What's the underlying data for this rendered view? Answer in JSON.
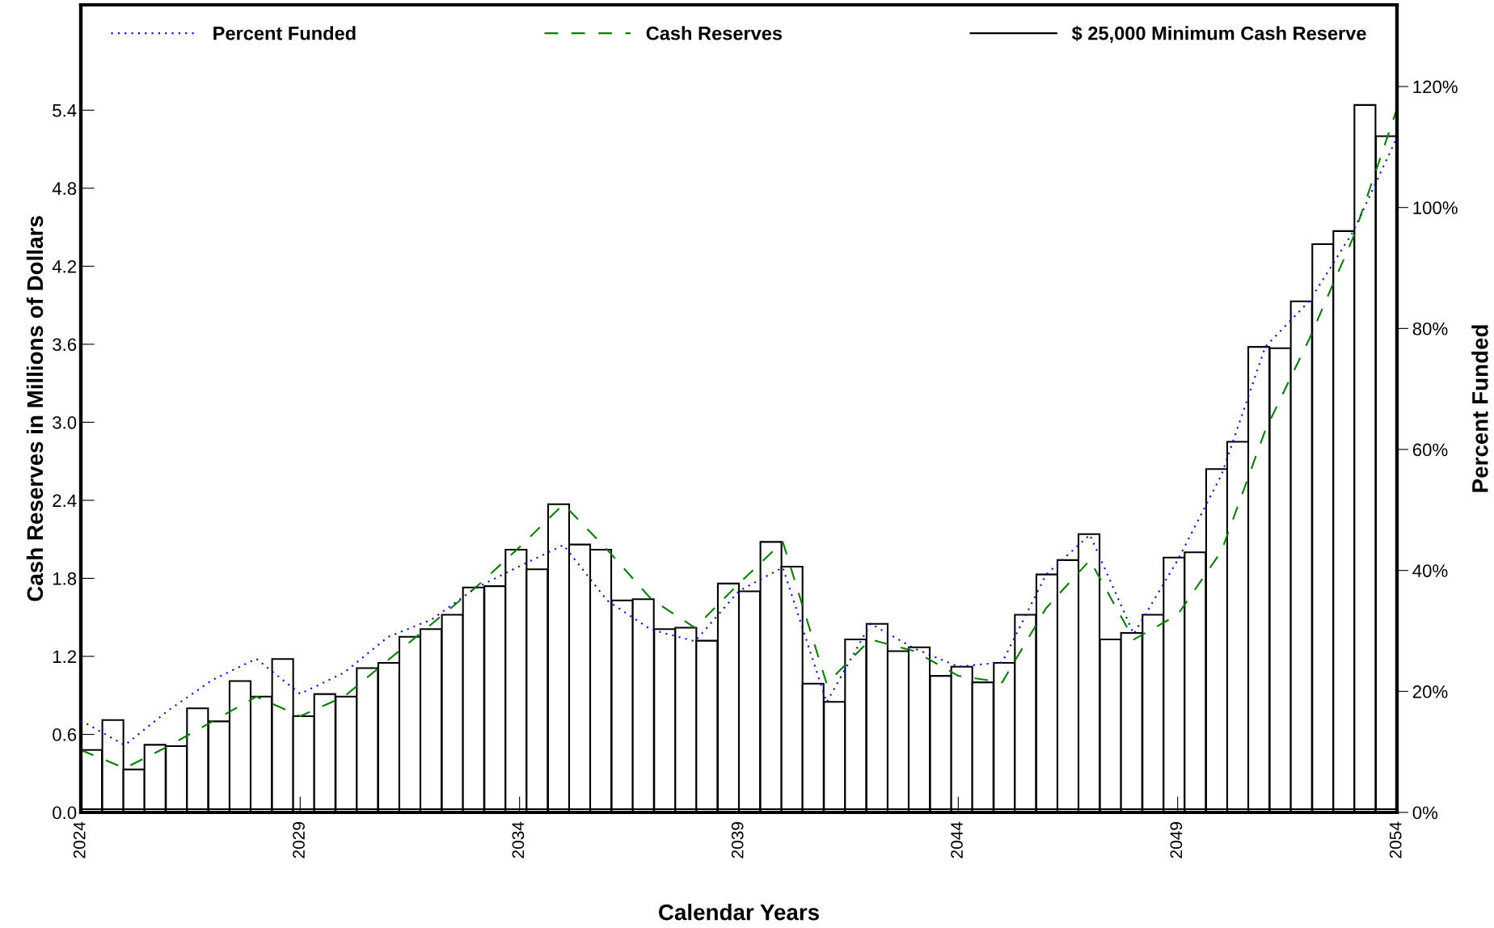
{
  "chart_data": {
    "type": "line",
    "xlabel": "Calendar Years",
    "ylabel": "Cash Reserves in Millions of Dollars",
    "y2label": "Percent Funded",
    "xlim": [
      2024,
      2054
    ],
    "xticks": [
      2024,
      2029,
      2034,
      2039,
      2044,
      2049,
      2054
    ],
    "ylim": [
      0,
      6.21
    ],
    "yticks": [
      {
        "value": 0,
        "label": "0.0"
      },
      0.6,
      1.2,
      1.8,
      2.4,
      {
        "value": 3,
        "label": "3.0"
      },
      3.6,
      4.2,
      4.8,
      5.4
    ],
    "y2lim": [
      0,
      133.5
    ],
    "y2ticks": [
      {
        "value": 0,
        "label": "0%"
      },
      {
        "value": 20,
        "label": "20%"
      },
      {
        "value": 40,
        "label": "40%"
      },
      {
        "value": 60,
        "label": "60%"
      },
      {
        "value": 80,
        "label": "80%"
      },
      {
        "value": 100,
        "label": "100%"
      },
      {
        "value": 120,
        "label": "120%"
      }
    ],
    "legend": "top",
    "grid": false,
    "series": [
      {
        "type": "bar",
        "color": "#ffffff",
        "x": [
          2024.24,
          2024.73,
          2025.21,
          2025.69,
          2026.18,
          2026.66,
          2027.15,
          2027.63,
          2028.11,
          2028.6,
          2029.08,
          2029.56,
          2030.05,
          2030.53,
          2031.02,
          2031.5,
          2031.98,
          2032.47,
          2032.95,
          2033.44,
          2033.92,
          2034.4,
          2034.89,
          2035.37,
          2035.85,
          2036.34,
          2036.82,
          2037.31,
          2037.79,
          2038.27,
          2038.76,
          2039.24,
          2039.73,
          2040.21,
          2040.69,
          2041.18,
          2041.66,
          2042.15,
          2042.63,
          2043.11,
          2043.6,
          2044.08,
          2044.56,
          2045.05,
          2045.53,
          2046.02,
          2046.5,
          2046.98,
          2047.47,
          2047.95,
          2048.44,
          2048.92,
          2049.4,
          2049.89,
          2050.37,
          2050.85,
          2051.34,
          2051.82,
          2052.31,
          2052.79,
          2053.27,
          2053.76
        ],
        "values": [
          0.48,
          0.71,
          0.33,
          0.52,
          0.51,
          0.8,
          0.7,
          1.01,
          0.89,
          1.18,
          0.74,
          0.91,
          0.89,
          1.11,
          1.15,
          1.35,
          1.41,
          1.52,
          1.73,
          1.74,
          2.02,
          1.87,
          2.37,
          2.06,
          2.02,
          1.63,
          1.64,
          1.41,
          1.42,
          1.32,
          1.76,
          1.7,
          2.08,
          1.89,
          0.99,
          0.85,
          1.33,
          1.45,
          1.24,
          1.27,
          1.05,
          1.12,
          1.0,
          1.15,
          1.52,
          1.83,
          1.94,
          2.14,
          1.33,
          1.38,
          1.52,
          1.96,
          2.0,
          2.64,
          2.85,
          3.58,
          3.57,
          3.93,
          4.37,
          4.47,
          5.44,
          5.2
        ]
      },
      {
        "name": "Percent Funded",
        "color": "#0000ff",
        "line_style": "dotted",
        "axis": "y2",
        "x": [
          2024,
          2025,
          2026,
          2027,
          2028,
          2029,
          2030,
          2031,
          2032,
          2033,
          2034,
          2035,
          2036,
          2037,
          2038,
          2039,
          2040,
          2041,
          2042,
          2043,
          2044,
          2045,
          2046,
          2047,
          2048,
          2049,
          2050,
          2051,
          2052,
          2053,
          2054
        ],
        "values": [
          15.2,
          11.1,
          16.9,
          21.9,
          25.4,
          19.6,
          23.1,
          29.0,
          31.9,
          37.1,
          40.7,
          44.2,
          35.0,
          30.2,
          28.3,
          36.6,
          40.5,
          18.2,
          31.2,
          27.1,
          24.1,
          24.8,
          39.3,
          45.9,
          29.5,
          41.7,
          55.8,
          77.0,
          84.5,
          96.0,
          111.6
        ]
      },
      {
        "name": "Cash Reserves",
        "color": "#008000",
        "line_style": "dashed",
        "x": [
          2024,
          2025,
          2026,
          2027,
          2028,
          2029,
          2030,
          2031,
          2032,
          2033,
          2034,
          2035,
          2036,
          2037,
          2038,
          2039,
          2040,
          2041,
          2042,
          2043,
          2044,
          2045,
          2046,
          2047,
          2048,
          2049,
          2050,
          2051,
          2052,
          2053,
          2054
        ],
        "values": [
          0.48,
          0.34,
          0.51,
          0.7,
          0.89,
          0.74,
          0.89,
          1.17,
          1.45,
          1.73,
          2.04,
          2.37,
          2.02,
          1.64,
          1.42,
          1.76,
          2.08,
          0.99,
          1.33,
          1.24,
          1.05,
          1.0,
          1.57,
          1.94,
          1.33,
          1.52,
          2.01,
          2.94,
          3.64,
          4.42,
          5.41
        ]
      },
      {
        "name": "$ 25,000 Minimum Cash Reserve",
        "color": "#000000",
        "line_style": "solid",
        "x": [
          2024,
          2054
        ],
        "values": [
          0.025,
          0.025
        ]
      }
    ]
  }
}
